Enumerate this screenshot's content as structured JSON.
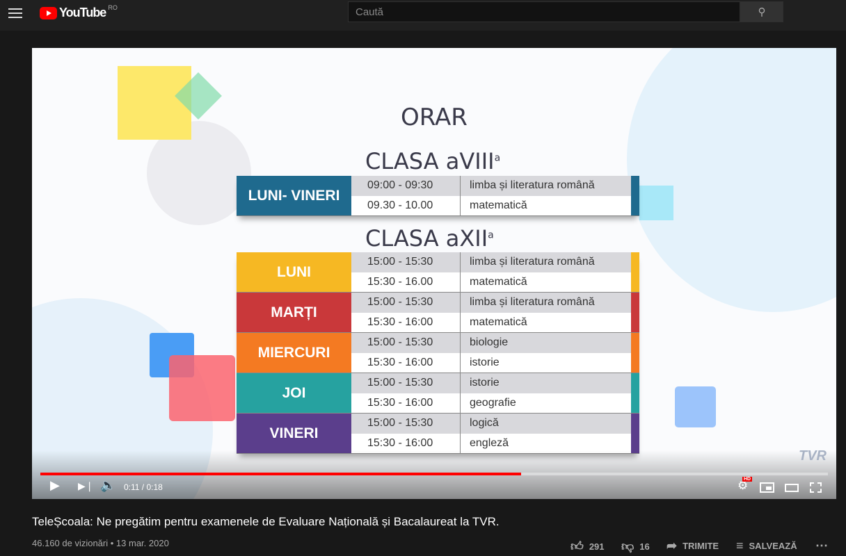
{
  "header": {
    "logo_text": "YouTube",
    "region": "RO",
    "search_placeholder": "Caută"
  },
  "video": {
    "heading": "ORAR",
    "class8": {
      "title": "CLASA a",
      "roman": "VIII",
      "sup": "a",
      "days": [
        {
          "label": "LUNI- VINERI",
          "color": "#1f6a8e",
          "rows": [
            {
              "time": "09:00 - 09:30",
              "subject": "limba și literatura română"
            },
            {
              "time": "09.30 - 10.00",
              "subject": "matematică"
            }
          ]
        }
      ]
    },
    "class12": {
      "title": "CLASA a",
      "roman": "XII",
      "sup": "a",
      "days": [
        {
          "label": "LUNI",
          "color": "#f6b823",
          "rows": [
            {
              "time": "15:00 - 15:30",
              "subject": "limba și literatura română"
            },
            {
              "time": "15:30 - 16.00",
              "subject": "matematică"
            }
          ]
        },
        {
          "label": "MARȚI",
          "color": "#c9383a",
          "rows": [
            {
              "time": "15:00 - 15:30",
              "subject": "limba și literatura română"
            },
            {
              "time": "15:30 - 16:00",
              "subject": "matematică"
            }
          ]
        },
        {
          "label": "MIERCURI",
          "color": "#f47a22",
          "rows": [
            {
              "time": "15:00 - 15:30",
              "subject": "biologie"
            },
            {
              "time": "15:30 - 16:00",
              "subject": "istorie"
            }
          ]
        },
        {
          "label": "JOI",
          "color": "#26a2a0",
          "rows": [
            {
              "time": "15:00 - 15:30",
              "subject": "istorie"
            },
            {
              "time": "15:30 - 16:00",
              "subject": "geografie"
            }
          ]
        },
        {
          "label": "VINERI",
          "color": "#5b3e8c",
          "rows": [
            {
              "time": "15:00 - 15:30",
              "subject": "logică"
            },
            {
              "time": "15:30 - 16:00",
              "subject": "engleză"
            }
          ]
        }
      ]
    },
    "watermark": "TVR",
    "player": {
      "time": "0:11 / 0:18",
      "progress": 0.61,
      "hd_badge": "HD"
    }
  },
  "info": {
    "title": "TeleȘcoala: Ne pregătim pentru examenele de Evaluare Națională și Bacalaureat la TVR.",
    "views": "46.160 de vizionări",
    "date": "13 mar. 2020",
    "likes": "291",
    "dislikes": "16",
    "share": "TRIMITE",
    "save": "SALVEAZĂ"
  }
}
